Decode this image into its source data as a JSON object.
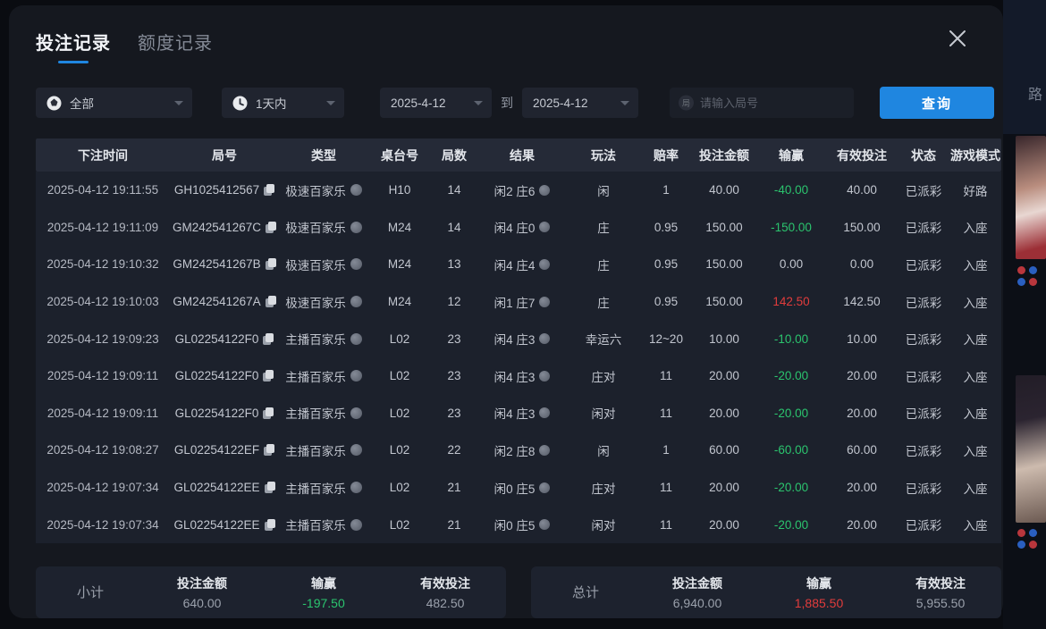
{
  "colors": {
    "accent_blue": "#1f86e0",
    "win_green": "#2bc46e",
    "loss_red": "#e23c3c",
    "modal_bg": "#15181f",
    "table_header_bg": "#252a37",
    "table_body_bg": "#1c212c"
  },
  "tabs": [
    {
      "label": "投注记录",
      "active": true
    },
    {
      "label": "额度记录",
      "active": false
    }
  ],
  "icons": {
    "close": "close-icon",
    "filter_type": "chip-icon",
    "filter_range": "clock-icon",
    "round_input": "round-number-icon",
    "round_input_char": "局",
    "caret": "caret-down-icon",
    "copy": "copy-icon",
    "type_indicator": "dot-icon",
    "result_indicator": "info-dot-icon"
  },
  "filters": {
    "type_dropdown": {
      "value": "全部"
    },
    "range_dropdown": {
      "value": "1天内"
    },
    "date_from": "2025-4-12",
    "to_label": "到",
    "date_to": "2025-4-12",
    "round_input_placeholder": "请输入局号",
    "query_button": "查询"
  },
  "table": {
    "columns": [
      "下注时间",
      "局号",
      "类型",
      "桌台号",
      "局数",
      "结果",
      "玩法",
      "赔率",
      "投注金额",
      "输赢",
      "有效投注",
      "状态",
      "游戏模式"
    ],
    "rows": [
      {
        "time": "2025-04-12 19:11:55",
        "round": "GH1025412567",
        "type": "极速百家乐",
        "table_no": "H10",
        "shoe": "14",
        "result": "闲2 庄6",
        "play": "闲",
        "odds": "1",
        "bet": "40.00",
        "winloss": "-40.00",
        "winloss_color": "green",
        "valid": "40.00",
        "status": "已派彩",
        "mode": "好路"
      },
      {
        "time": "2025-04-12 19:11:09",
        "round": "GM242541267C",
        "type": "极速百家乐",
        "table_no": "M24",
        "shoe": "14",
        "result": "闲4 庄0",
        "play": "庄",
        "odds": "0.95",
        "bet": "150.00",
        "winloss": "-150.00",
        "winloss_color": "green",
        "valid": "150.00",
        "status": "已派彩",
        "mode": "入座"
      },
      {
        "time": "2025-04-12 19:10:32",
        "round": "GM242541267B",
        "type": "极速百家乐",
        "table_no": "M24",
        "shoe": "13",
        "result": "闲4 庄4",
        "play": "庄",
        "odds": "0.95",
        "bet": "150.00",
        "winloss": "0.00",
        "winloss_color": "neutral",
        "valid": "0.00",
        "status": "已派彩",
        "mode": "入座"
      },
      {
        "time": "2025-04-12 19:10:03",
        "round": "GM242541267A",
        "type": "极速百家乐",
        "table_no": "M24",
        "shoe": "12",
        "result": "闲1 庄7",
        "play": "庄",
        "odds": "0.95",
        "bet": "150.00",
        "winloss": "142.50",
        "winloss_color": "red",
        "valid": "142.50",
        "status": "已派彩",
        "mode": "入座"
      },
      {
        "time": "2025-04-12 19:09:23",
        "round": "GL02254122F0",
        "type": "主播百家乐",
        "table_no": "L02",
        "shoe": "23",
        "result": "闲4 庄3",
        "play": "幸运六",
        "odds": "12~20",
        "bet": "10.00",
        "winloss": "-10.00",
        "winloss_color": "green",
        "valid": "10.00",
        "status": "已派彩",
        "mode": "入座"
      },
      {
        "time": "2025-04-12 19:09:11",
        "round": "GL02254122F0",
        "type": "主播百家乐",
        "table_no": "L02",
        "shoe": "23",
        "result": "闲4 庄3",
        "play": "庄对",
        "odds": "11",
        "bet": "20.00",
        "winloss": "-20.00",
        "winloss_color": "green",
        "valid": "20.00",
        "status": "已派彩",
        "mode": "入座"
      },
      {
        "time": "2025-04-12 19:09:11",
        "round": "GL02254122F0",
        "type": "主播百家乐",
        "table_no": "L02",
        "shoe": "23",
        "result": "闲4 庄3",
        "play": "闲对",
        "odds": "11",
        "bet": "20.00",
        "winloss": "-20.00",
        "winloss_color": "green",
        "valid": "20.00",
        "status": "已派彩",
        "mode": "入座"
      },
      {
        "time": "2025-04-12 19:08:27",
        "round": "GL02254122EF",
        "type": "主播百家乐",
        "table_no": "L02",
        "shoe": "22",
        "result": "闲2 庄8",
        "play": "闲",
        "odds": "1",
        "bet": "60.00",
        "winloss": "-60.00",
        "winloss_color": "green",
        "valid": "60.00",
        "status": "已派彩",
        "mode": "入座"
      },
      {
        "time": "2025-04-12 19:07:34",
        "round": "GL02254122EE",
        "type": "主播百家乐",
        "table_no": "L02",
        "shoe": "21",
        "result": "闲0 庄5",
        "play": "庄对",
        "odds": "11",
        "bet": "20.00",
        "winloss": "-20.00",
        "winloss_color": "green",
        "valid": "20.00",
        "status": "已派彩",
        "mode": "入座"
      },
      {
        "time": "2025-04-12 19:07:34",
        "round": "GL02254122EE",
        "type": "主播百家乐",
        "table_no": "L02",
        "shoe": "21",
        "result": "闲0 庄5",
        "play": "闲对",
        "odds": "11",
        "bet": "20.00",
        "winloss": "-20.00",
        "winloss_color": "green",
        "valid": "20.00",
        "status": "已派彩",
        "mode": "入座"
      }
    ]
  },
  "summary": {
    "subtotal": {
      "label": "小计",
      "columns": [
        {
          "label": "投注金额",
          "value": "640.00",
          "color": "neutral"
        },
        {
          "label": "输赢",
          "value": "-197.50",
          "color": "green"
        },
        {
          "label": "有效投注",
          "value": "482.50",
          "color": "neutral"
        }
      ]
    },
    "total": {
      "label": "总计",
      "columns": [
        {
          "label": "投注金额",
          "value": "6,940.00",
          "color": "neutral"
        },
        {
          "label": "输赢",
          "value": "1,885.50",
          "color": "red"
        },
        {
          "label": "有效投注",
          "value": "5,955.50",
          "color": "neutral"
        }
      ]
    }
  },
  "background": {
    "partial_text": "路"
  }
}
